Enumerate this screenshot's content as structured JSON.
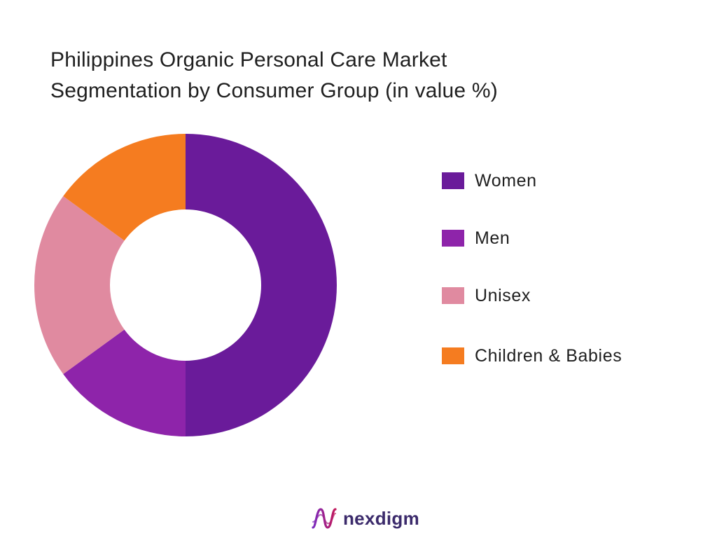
{
  "chart_data": {
    "type": "pie",
    "title_lines": [
      "Philippines Organic Personal Care Market",
      "Segmentation by Consumer Group (in value %)"
    ],
    "donut": true,
    "legend_position": "right",
    "categories": [
      "Women",
      "Men",
      "Unisex",
      "Children & Babies"
    ],
    "values": [
      50,
      15,
      20,
      15
    ],
    "colors": [
      "#6a1b9a",
      "#8e24aa",
      "#e08aa0",
      "#f57c20"
    ]
  },
  "branding": {
    "logo_text": "nexdigm"
  }
}
